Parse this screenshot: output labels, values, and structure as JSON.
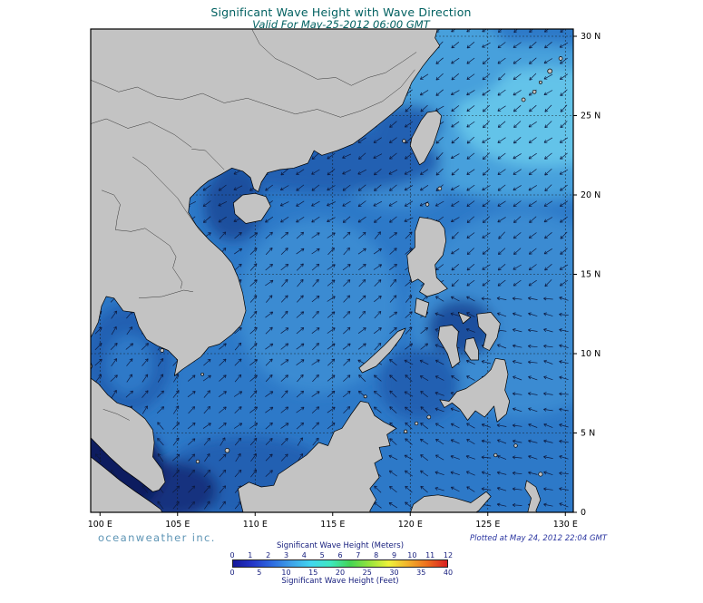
{
  "header": {
    "title": "Significant Wave Height with Wave Direction",
    "subtitle": "Valid For May-25-2012 06:00 GMT"
  },
  "footer": {
    "credit": "oceanweather inc.",
    "plotted": "Plotted at May 24, 2012 22:04 GMT"
  },
  "axes": {
    "lon_labels": [
      "100 E",
      "105 E",
      "110 E",
      "115 E",
      "120 E",
      "125 E",
      "130 E"
    ],
    "lon_values": [
      100,
      105,
      110,
      115,
      120,
      125,
      130
    ],
    "lat_labels": [
      "0",
      "5 N",
      "10 N",
      "15 N",
      "20 N",
      "25 N",
      "30 N"
    ],
    "lat_values": [
      0,
      5,
      10,
      15,
      20,
      25,
      30
    ]
  },
  "legend": {
    "meters_label": "Significant Wave Height (Meters)",
    "feet_label": "Significant Wave Height (Feet)",
    "meters_ticks": [
      "0",
      "1",
      "2",
      "3",
      "4",
      "5",
      "6",
      "7",
      "8",
      "9",
      "10",
      "11",
      "12"
    ],
    "feet_ticks": [
      "0",
      "5",
      "10",
      "15",
      "20",
      "25",
      "30",
      "35",
      "40"
    ],
    "colors": [
      "#151899",
      "#2436c8",
      "#2e6be0",
      "#3fa2e8",
      "#41d6ef",
      "#3fe8c0",
      "#44d455",
      "#96e43c",
      "#eef23a",
      "#f2b02c",
      "#ed6c1e",
      "#d92020"
    ]
  },
  "map": {
    "colors": {
      "ocean_base": "#2d79c8",
      "ocean_mid_light": "#3a8bd2",
      "ocean_light": "#46a0dc",
      "ocean_lighter": "#63c3e9",
      "ocean_dark": "#2260b2",
      "ocean_darker": "#1b4f9e",
      "ocean_navy": "#12307f",
      "ocean_deepnavy": "#0a1c5e",
      "land": "#c3c3c3",
      "grid": "#141414",
      "arrow": "#0d1a40"
    }
  },
  "chart_data": {
    "type": "heatmap",
    "title": "Significant Wave Height with Wave Direction",
    "valid_time": "May-25-2012 06:00 GMT",
    "plotted_time": "May 24, 2012 22:04 GMT",
    "x_ticks": [
      "100 E",
      "105 E",
      "110 E",
      "115 E",
      "120 E",
      "125 E",
      "130 E"
    ],
    "y_ticks": [
      "0",
      "5 N",
      "10 N",
      "15 N",
      "20 N",
      "25 N",
      "30 N"
    ],
    "colorbar_meters_range": [
      0,
      12
    ],
    "colorbar_feet_range": [
      0,
      40
    ],
    "overlay": "wave-direction-arrows"
  }
}
